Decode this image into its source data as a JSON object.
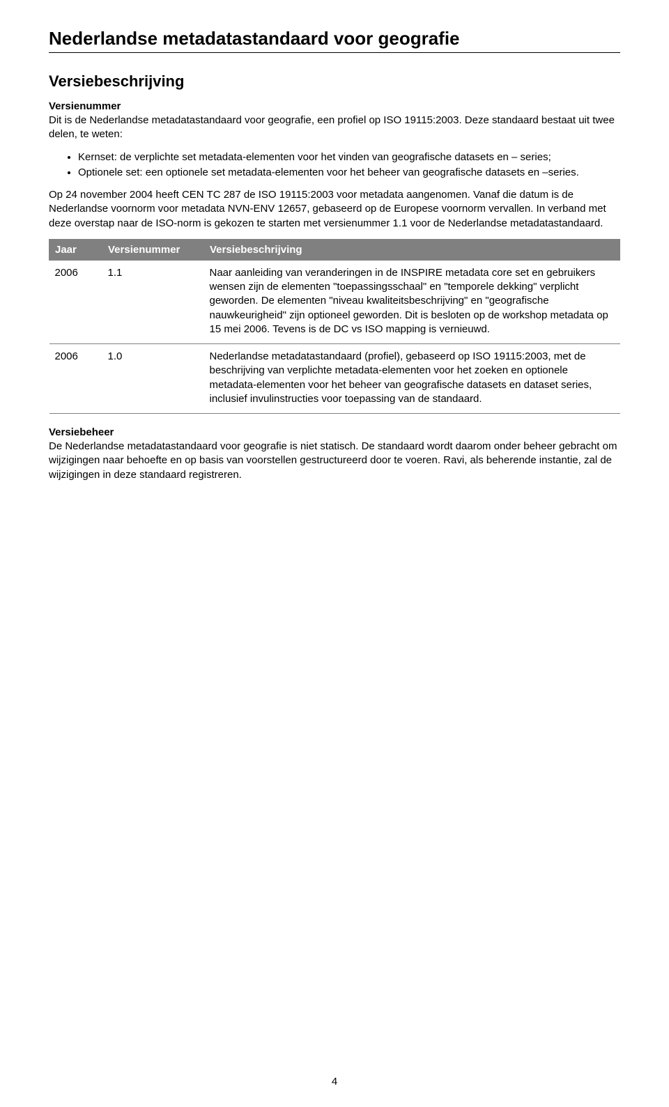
{
  "doc_title": "Nederlandse metadatastandaard voor geografie",
  "section_heading": "Versiebeschrijving",
  "versienummer_heading": "Versienummer",
  "versienummer_intro": "Dit is de Nederlandse metadatastandaard voor geografie, een profiel op ISO 19115:2003. Deze standaard bestaat uit twee delen, te weten:",
  "bullets": [
    "Kernset: de verplichte set metadata-elementen voor het vinden van geografische datasets en – series;",
    "Optionele set: een optionele set metadata-elementen voor het beheer van geografische datasets en –series."
  ],
  "versienummer_body": "Op 24 november 2004 heeft CEN TC 287 de ISO 19115:2003 voor metadata aangenomen. Vanaf die datum is de Nederlandse voornorm voor metadata NVN-ENV 12657, gebaseerd op de Europese voornorm vervallen. In verband met deze overstap naar de ISO-norm is gekozen te starten met versienummer 1.1 voor de Nederlandse metadatastandaard.",
  "table": {
    "header_bg": "#808080",
    "header_color": "#ffffff",
    "columns": [
      "Jaar",
      "Versienummer",
      "Versiebeschrijving"
    ],
    "rows": [
      {
        "jaar": "2006",
        "versienummer": "1.1",
        "beschrijving": "Naar aanleiding van veranderingen in de INSPIRE metadata core set en gebruikers wensen zijn de elementen \"toepassingsschaal\" en \"temporele dekking\" verplicht geworden. De elementen \"niveau kwaliteitsbeschrijving\" en \"geografische nauwkeurigheid\" zijn optioneel geworden. Dit is besloten op de workshop metadata op 15 mei 2006. Tevens is de DC vs ISO mapping is vernieuwd."
      },
      {
        "jaar": "2006",
        "versienummer": "1.0",
        "beschrijving": "Nederlandse metadatastandaard (profiel), gebaseerd op ISO 19115:2003, met de beschrijving van verplichte metadata-elementen voor het zoeken en optionele metadata-elementen voor het beheer van geografische datasets en dataset series, inclusief invulinstructies voor toepassing van de standaard."
      }
    ]
  },
  "versiebeheer_heading": "Versiebeheer",
  "versiebeheer_body": "De Nederlandse metadatastandaard voor geografie is niet statisch. De standaard wordt daarom onder beheer gebracht om wijzigingen naar behoefte en op basis van voorstellen gestructureerd door te voeren. Ravi, als beherende instantie, zal de wijzigingen in deze standaard registreren.",
  "page_number": "4"
}
